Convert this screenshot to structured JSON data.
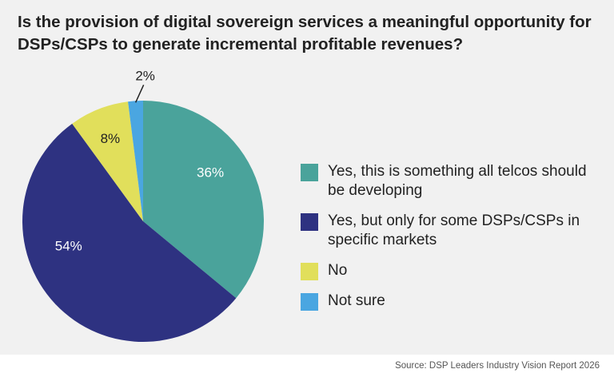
{
  "title": "Is the provision of digital sovereign services a meaningful opportunity for DSPs/CSPs to generate incremental profitable revenues?",
  "source": "Source: DSP Leaders Industry Vision Report 2026",
  "chart_data": {
    "type": "pie",
    "title": "Is the provision of digital sovereign services a meaningful opportunity for DSPs/CSPs to generate incremental profitable revenues?",
    "start": "12 o'clock, clockwise",
    "legend_position": "right",
    "slices": [
      {
        "label": "Yes, this is something all telcos should be developing",
        "value": 36,
        "display": "36%",
        "color": "#4aa39b",
        "text_color": "#ffffff"
      },
      {
        "label": "Yes, but only for some DSPs/CSPs in specific markets",
        "value": 54,
        "display": "54%",
        "color": "#2e3281",
        "text_color": "#ffffff"
      },
      {
        "label": "No",
        "value": 8,
        "display": "8%",
        "color": "#e1df5b",
        "text_color": "#222222"
      },
      {
        "label": "Not sure",
        "value": 2,
        "display": "2%",
        "color": "#4aa6e1",
        "text_color": "#222222"
      }
    ]
  }
}
